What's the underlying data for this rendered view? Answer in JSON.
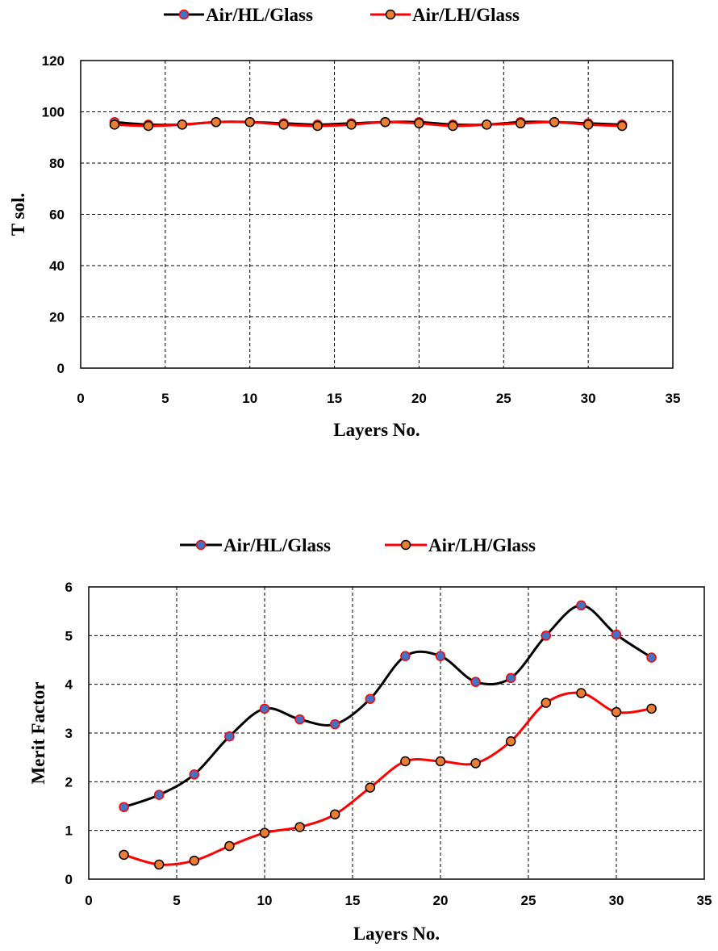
{
  "chart_data": [
    {
      "type": "line",
      "title": "",
      "xlabel": "Layers No.",
      "ylabel": "T sol.",
      "xlim": [
        0,
        35
      ],
      "ylim": [
        0,
        120
      ],
      "xticks": [
        0,
        5,
        10,
        15,
        20,
        25,
        30,
        35
      ],
      "yticks": [
        0,
        20,
        40,
        60,
        80,
        100,
        120
      ],
      "grid": true,
      "legend_position": "top",
      "x": [
        2,
        4,
        6,
        8,
        10,
        12,
        14,
        16,
        18,
        20,
        22,
        24,
        26,
        28,
        30,
        32
      ],
      "series": [
        {
          "name": "Air/HL/Glass",
          "line_color": "#000000",
          "marker_color": "#4472C4",
          "marker_edge": "#FF0000",
          "values": [
            96,
            95,
            95,
            96,
            96,
            95.5,
            95,
            95.5,
            96,
            96,
            95,
            95,
            96,
            96,
            95.5,
            95
          ]
        },
        {
          "name": "Air/LH/Glass",
          "line_color": "#FF0000",
          "marker_color": "#ED7D31",
          "marker_edge": "#000000",
          "values": [
            95,
            94.5,
            95,
            96,
            96,
            95,
            94.5,
            95,
            96,
            95.5,
            94.5,
            95,
            95.5,
            96,
            95,
            94.5
          ]
        }
      ]
    },
    {
      "type": "line",
      "title": "",
      "xlabel": "Layers No.",
      "ylabel": "Merit Factor",
      "xlim": [
        0,
        35
      ],
      "ylim": [
        0,
        6
      ],
      "xticks": [
        0,
        5,
        10,
        15,
        20,
        25,
        30,
        35
      ],
      "yticks": [
        0,
        1,
        2,
        3,
        4,
        5,
        6
      ],
      "grid": true,
      "legend_position": "top",
      "x": [
        2,
        4,
        6,
        8,
        10,
        12,
        14,
        16,
        18,
        20,
        22,
        24,
        26,
        28,
        30,
        32
      ],
      "series": [
        {
          "name": "Air/HL/Glass",
          "line_color": "#000000",
          "marker_color": "#4472C4",
          "marker_edge": "#FF0000",
          "values": [
            1.48,
            1.73,
            2.15,
            2.93,
            3.5,
            3.28,
            3.18,
            3.7,
            4.58,
            4.58,
            4.05,
            4.13,
            5.0,
            5.62,
            5.02,
            4.55
          ]
        },
        {
          "name": "Air/LH/Glass",
          "line_color": "#FF0000",
          "marker_color": "#ED7D31",
          "marker_edge": "#000000",
          "values": [
            0.5,
            0.3,
            0.38,
            0.68,
            0.95,
            1.07,
            1.33,
            1.88,
            2.42,
            2.42,
            2.38,
            2.83,
            3.62,
            3.82,
            3.43,
            3.5
          ]
        }
      ]
    }
  ]
}
